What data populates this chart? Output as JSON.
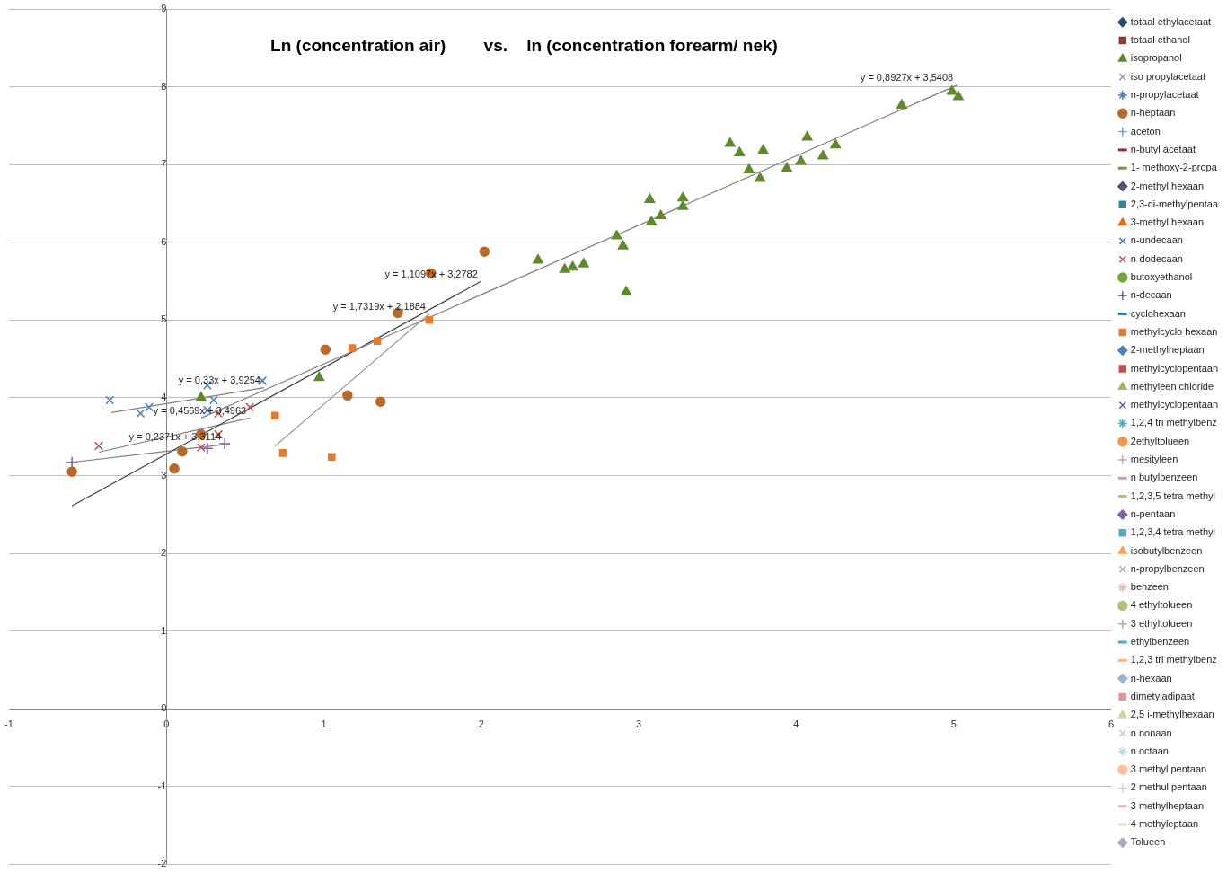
{
  "chart_data": {
    "type": "scatter",
    "title": "Ln (concentration air)        vs.    ln (concentration forearm/ nek)",
    "xlim": [
      -1,
      6
    ],
    "xticks": [
      -1,
      0,
      1,
      2,
      3,
      4,
      5,
      6
    ],
    "ylim": [
      -2,
      9
    ],
    "yticks": [
      -2,
      -1,
      0,
      1,
      2,
      3,
      4,
      5,
      6,
      7,
      8,
      9
    ],
    "grid": "y",
    "legend": "right",
    "annotations": [
      "y = 0,8927x + 3,5408",
      "y = 1,1097x + 3,2782",
      "y = 1,7319x + 2,1884",
      "y = 0,33x + 3,9254",
      "y = 0,4569x + 3,4963",
      "y = 0,2371x + 3,3114"
    ],
    "series": [
      {
        "name": "totaal ethylacetaat",
        "marker": "diamond",
        "color": "#2c4d75"
      },
      {
        "name": "totaal ethanol",
        "marker": "square",
        "color": "#8b3a3a"
      },
      {
        "name": "isopropanol",
        "marker": "triangle",
        "color": "#5f8a2c",
        "x": [
          0.22,
          0.97,
          2.36,
          2.53,
          2.58,
          2.65,
          2.86,
          2.9,
          2.92,
          3.07,
          3.08,
          3.14,
          3.28,
          3.28,
          3.58,
          3.64,
          3.7,
          3.77,
          3.79,
          3.94,
          4.03,
          4.07,
          4.17,
          4.25,
          4.67,
          4.99,
          5.03
        ],
        "values": [
          4.0,
          4.26,
          5.77,
          5.65,
          5.68,
          5.72,
          6.08,
          5.95,
          5.36,
          6.55,
          6.26,
          6.34,
          6.57,
          6.46,
          7.27,
          7.15,
          6.93,
          6.82,
          7.18,
          6.95,
          7.04,
          7.35,
          7.11,
          7.25,
          7.76,
          7.94,
          7.87
        ]
      },
      {
        "name": "iso propylacetaat",
        "marker": "cross",
        "color": "#9c8fc5"
      },
      {
        "name": "n-propylacetaat",
        "marker": "star",
        "color": "#4f81bd"
      },
      {
        "name": "n-heptaan",
        "marker": "circle",
        "color": "#b8692a",
        "x": [
          -0.6,
          0.05,
          0.1,
          0.22,
          1.01,
          1.15,
          1.36,
          1.47,
          1.68,
          2.02
        ],
        "values": [
          3.05,
          3.09,
          3.31,
          3.53,
          4.62,
          4.03,
          3.95,
          5.09,
          5.6,
          5.88
        ]
      },
      {
        "name": "aceton",
        "marker": "plus",
        "color": "#7f9fcf"
      },
      {
        "name": "n-butyl acetaat",
        "marker": "dash",
        "color": "#a0282a"
      },
      {
        "name": "1- methoxy-2-propa",
        "marker": "dash",
        "color": "#77933c"
      },
      {
        "name": "2-methyl hexaan",
        "marker": "diamond",
        "color": "#604a7b"
      },
      {
        "name": "2,3-di-methylpentaa",
        "marker": "square",
        "color": "#31859c"
      },
      {
        "name": "3-methyl hexaan",
        "marker": "triangle",
        "color": "#e46c0a"
      },
      {
        "name": "n-undecaan",
        "marker": "cross",
        "color": "#4a7ebb",
        "x": [
          -0.36,
          -0.165,
          -0.11,
          0.26,
          0.3,
          0.26,
          0.61
        ],
        "values": [
          3.97,
          3.8,
          3.88,
          4.16,
          3.97,
          3.84,
          4.22
        ]
      },
      {
        "name": "n-dodecaan",
        "marker": "cross",
        "color": "#c0504d",
        "x": [
          -0.43,
          0.22,
          0.33,
          0.33,
          0.53
        ],
        "values": [
          3.38,
          3.36,
          3.8,
          3.53,
          3.88
        ]
      },
      {
        "name": "butoxyethanol",
        "marker": "circle",
        "color": "#77a33c"
      },
      {
        "name": "n-decaan",
        "marker": "plus",
        "color": "#7a5ba0",
        "x": [
          -0.6,
          0.26,
          0.37
        ],
        "values": [
          3.17,
          3.35,
          3.41
        ]
      },
      {
        "name": "cyclohexaan",
        "marker": "dash",
        "color": "#31859c"
      },
      {
        "name": "methylcyclo hexaan",
        "marker": "square",
        "color": "#e57b2a",
        "x": [
          0.69,
          0.74,
          1.05,
          1.18,
          1.34,
          1.67
        ],
        "values": [
          3.77,
          3.29,
          3.24,
          4.64,
          4.73,
          5.0
        ]
      },
      {
        "name": "2-methylheptaan",
        "marker": "diamond",
        "color": "#4f81bd"
      },
      {
        "name": "methylcyclopentaan",
        "marker": "square",
        "color": "#c0504d"
      },
      {
        "name": "methyleen chloride",
        "marker": "triangle",
        "color": "#9bbb59"
      },
      {
        "name": "methylcyclopentaan",
        "marker": "cross",
        "color": "#8064a2"
      },
      {
        "name": "1,2,4 tri methylbenz",
        "marker": "star",
        "color": "#4bacc6"
      },
      {
        "name": "2ethyltolueen",
        "marker": "circle",
        "color": "#f79646"
      },
      {
        "name": "mesityleen",
        "marker": "plus",
        "color": "#95b3d7"
      },
      {
        "name": "n butylbenzeen",
        "marker": "dash",
        "color": "#d99694"
      },
      {
        "name": "1,2,3,5 tetra methyl",
        "marker": "dash",
        "color": "#a9c46b"
      },
      {
        "name": "n-pentaan",
        "marker": "diamond",
        "color": "#8064a2"
      },
      {
        "name": "1,2,3,4 tetra methyl",
        "marker": "square",
        "color": "#4bacc6"
      },
      {
        "name": "isobutylbenzeen",
        "marker": "triangle",
        "color": "#f9a05a"
      },
      {
        "name": "n-propylbenzeen",
        "marker": "cross",
        "color": "#b3a2c7"
      },
      {
        "name": "benzeen",
        "marker": "star",
        "color": "#e6b9b8"
      },
      {
        "name": "4 ethyltolueen",
        "marker": "circle",
        "color": "#a9c47a"
      },
      {
        "name": "3 ethyltolueen",
        "marker": "plus",
        "color": "#b3a2c7"
      },
      {
        "name": "ethylbenzeen",
        "marker": "dash",
        "color": "#4bacc6"
      },
      {
        "name": "1,2,3 tri methylbenz",
        "marker": "dash",
        "color": "#fab07a"
      },
      {
        "name": "n-hexaan",
        "marker": "diamond",
        "color": "#95b3d7"
      },
      {
        "name": "dimetyladipaat",
        "marker": "square",
        "color": "#d99694"
      },
      {
        "name": "2,5 i-methylhexaan",
        "marker": "triangle",
        "color": "#c3d69b"
      },
      {
        "name": "n nonaan",
        "marker": "cross",
        "color": "#ccc1da"
      },
      {
        "name": "n octaan",
        "marker": "star",
        "color": "#b7dde8"
      },
      {
        "name": "3 methyl pentaan",
        "marker": "circle",
        "color": "#fbc09a"
      },
      {
        "name": "2 methul pentaan",
        "marker": "plus",
        "color": "#c5d3ea"
      },
      {
        "name": "3 methylheptaan",
        "marker": "dash",
        "color": "#e6b9b8"
      },
      {
        "name": "4 methyleptaan",
        "marker": "dash",
        "color": "#d7e4bd"
      },
      {
        "name": "Tolueen",
        "marker": "diamond",
        "color": "#b3a2c7"
      },
      {
        "type": "line",
        "color": "#7f7f7f",
        "x": [
          0.22,
          5.02
        ],
        "values": [
          3.74,
          8.02
        ]
      },
      {
        "type": "line",
        "color": "#404040",
        "x": [
          -0.6,
          2.0
        ],
        "values": [
          2.61,
          5.5
        ]
      },
      {
        "type": "line",
        "color": "#8c8c8c",
        "x": [
          0.69,
          1.67
        ],
        "values": [
          3.38,
          5.08
        ]
      },
      {
        "type": "line",
        "color": "#7f7f7f",
        "x": [
          -0.35,
          0.62
        ],
        "values": [
          3.81,
          4.13
        ]
      },
      {
        "type": "line",
        "color": "#7f7f7f",
        "x": [
          -0.43,
          0.53
        ],
        "values": [
          3.3,
          3.74
        ]
      },
      {
        "type": "line",
        "color": "#7f7f7f",
        "x": [
          -0.6,
          0.37
        ],
        "values": [
          3.17,
          3.4
        ]
      }
    ]
  }
}
